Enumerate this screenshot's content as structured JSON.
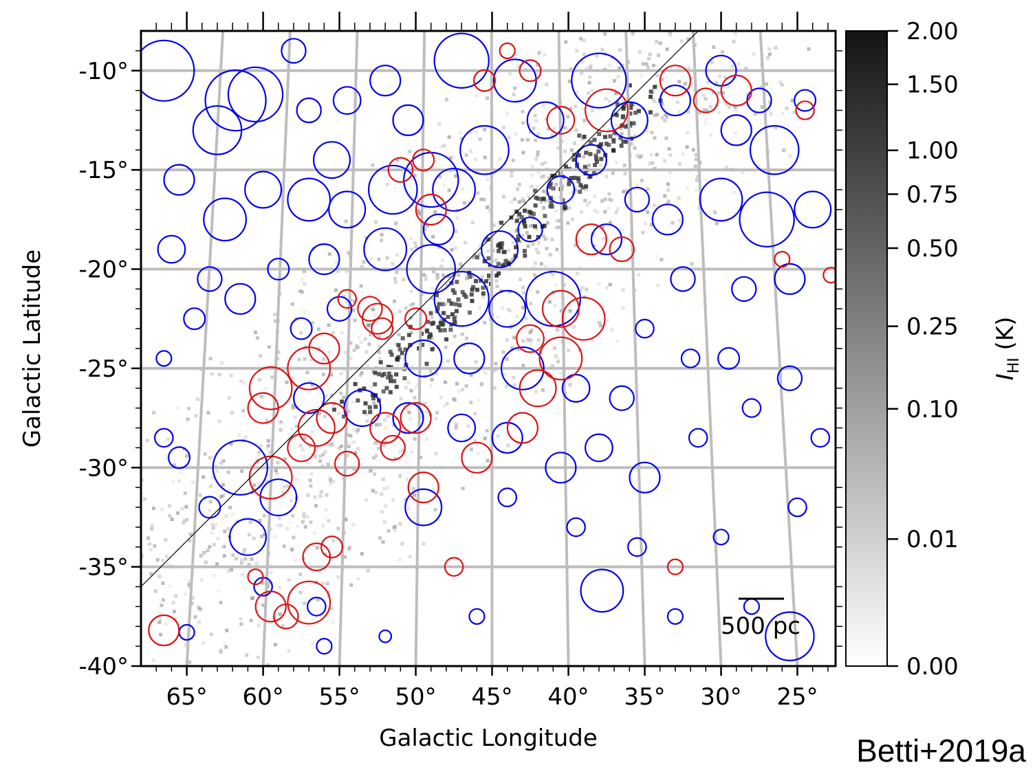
{
  "chart_data": {
    "type": "scatter",
    "xlabel": "Galactic Longitude",
    "ylabel": "Galactic Latitude",
    "xlim": [
      68,
      22.5
    ],
    "ylim": [
      -40,
      -8
    ],
    "x_ticks": [
      {
        "value": 65,
        "label": "65°"
      },
      {
        "value": 60,
        "label": "60°"
      },
      {
        "value": 55,
        "label": "55°"
      },
      {
        "value": 50,
        "label": "50°"
      },
      {
        "value": 45,
        "label": "45°"
      },
      {
        "value": 40,
        "label": "40°"
      },
      {
        "value": 35,
        "label": "35°"
      },
      {
        "value": 30,
        "label": "30°"
      },
      {
        "value": 25,
        "label": "25°"
      }
    ],
    "y_ticks": [
      {
        "value": -10,
        "label": "-10°"
      },
      {
        "value": -15,
        "label": "-15°"
      },
      {
        "value": -20,
        "label": "-20°"
      },
      {
        "value": -25,
        "label": "-25°"
      },
      {
        "value": -30,
        "label": "-30°"
      },
      {
        "value": -35,
        "label": "-35°"
      },
      {
        "value": -40,
        "label": "-40°"
      }
    ],
    "grid": true,
    "diagonal_line": {
      "from": [
        68,
        -36
      ],
      "to": [
        31.5,
        -8
      ]
    },
    "scale_bar_label": "500 pc",
    "colorbar": {
      "label_main": "I",
      "label_sub": "HI",
      "label_unit": " (K)",
      "range": [
        0,
        2
      ],
      "ticks": [
        {
          "value": 2.0,
          "label": "2.00"
        },
        {
          "value": 1.5,
          "label": "1.50"
        },
        {
          "value": 1.0,
          "label": "1.00"
        },
        {
          "value": 0.75,
          "label": "0.75"
        },
        {
          "value": 0.5,
          "label": "0.50"
        },
        {
          "value": 0.25,
          "label": "0.25"
        },
        {
          "value": 0.1,
          "label": "0.10"
        },
        {
          "value": 0.01,
          "label": "0.01"
        },
        {
          "value": 0.0,
          "label": "0.00"
        }
      ]
    },
    "series": [
      {
        "color": "#0000ee",
        "points": [
          [
            66.5,
            -10.0,
            2.0
          ],
          [
            61.8,
            -11.5,
            2.0
          ],
          [
            60.5,
            -11.2,
            1.8
          ],
          [
            63.0,
            -13.0,
            1.6
          ],
          [
            58.0,
            -9.0,
            0.8
          ],
          [
            55.5,
            -14.5,
            1.2
          ],
          [
            57.0,
            -16.5,
            1.4
          ],
          [
            60.0,
            -16.0,
            1.2
          ],
          [
            62.5,
            -17.5,
            1.4
          ],
          [
            65.5,
            -15.5,
            1.0
          ],
          [
            66.0,
            -19.0,
            0.9
          ],
          [
            63.5,
            -20.5,
            0.8
          ],
          [
            61.5,
            -21.5,
            1.0
          ],
          [
            59.0,
            -20.0,
            0.7
          ],
          [
            56.0,
            -19.5,
            1.0
          ],
          [
            54.5,
            -17.0,
            1.2
          ],
          [
            51.5,
            -16.0,
            1.6
          ],
          [
            49.0,
            -15.5,
            1.8
          ],
          [
            47.5,
            -16.0,
            1.4
          ],
          [
            45.5,
            -14.0,
            1.6
          ],
          [
            47.0,
            -9.5,
            1.8
          ],
          [
            43.5,
            -10.5,
            1.4
          ],
          [
            38.0,
            -10.5,
            1.8
          ],
          [
            36.0,
            -12.5,
            1.2
          ],
          [
            33.0,
            -11.5,
            1.0
          ],
          [
            30.0,
            -10.0,
            1.0
          ],
          [
            29.0,
            -13.0,
            1.0
          ],
          [
            26.5,
            -14.0,
            1.6
          ],
          [
            27.0,
            -17.5,
            1.8
          ],
          [
            24.0,
            -17.0,
            1.2
          ],
          [
            30.0,
            -16.5,
            1.4
          ],
          [
            33.5,
            -17.5,
            1.0
          ],
          [
            32.5,
            -20.5,
            0.8
          ],
          [
            28.5,
            -21.0,
            0.8
          ],
          [
            25.5,
            -20.5,
            1.0
          ],
          [
            41.0,
            -21.5,
            1.8
          ],
          [
            44.0,
            -22.0,
            1.2
          ],
          [
            47.0,
            -21.5,
            1.8
          ],
          [
            49.0,
            -20.0,
            1.6
          ],
          [
            52.0,
            -19.0,
            1.4
          ],
          [
            49.5,
            -24.5,
            1.2
          ],
          [
            46.5,
            -24.5,
            1.0
          ],
          [
            43.0,
            -25.0,
            1.4
          ],
          [
            39.5,
            -26.0,
            0.9
          ],
          [
            36.5,
            -26.5,
            0.8
          ],
          [
            38.0,
            -29.0,
            0.9
          ],
          [
            35.0,
            -30.5,
            1.0
          ],
          [
            40.5,
            -30.0,
            1.0
          ],
          [
            44.0,
            -28.5,
            1.0
          ],
          [
            47.0,
            -28.0,
            0.9
          ],
          [
            50.5,
            -27.5,
            1.0
          ],
          [
            53.5,
            -27.0,
            1.2
          ],
          [
            57.0,
            -26.5,
            1.0
          ],
          [
            61.5,
            -30.0,
            1.8
          ],
          [
            59.0,
            -31.5,
            1.2
          ],
          [
            61.0,
            -33.5,
            1.2
          ],
          [
            63.5,
            -32.0,
            0.7
          ],
          [
            65.5,
            -29.5,
            0.7
          ],
          [
            66.5,
            -28.5,
            0.6
          ],
          [
            60.0,
            -36.0,
            0.6
          ],
          [
            49.5,
            -32.0,
            1.2
          ],
          [
            44.0,
            -31.5,
            0.6
          ],
          [
            39.5,
            -33.0,
            0.6
          ],
          [
            35.5,
            -34.0,
            0.6
          ],
          [
            30.0,
            -33.5,
            0.5
          ],
          [
            25.0,
            -32.0,
            0.6
          ],
          [
            23.5,
            -28.5,
            0.6
          ],
          [
            25.5,
            -25.5,
            0.8
          ],
          [
            28.0,
            -27.0,
            0.6
          ],
          [
            31.5,
            -28.5,
            0.6
          ],
          [
            37.8,
            -36.2,
            1.4
          ],
          [
            25.5,
            -38.5,
            1.6
          ],
          [
            28.0,
            -37.0,
            0.5
          ],
          [
            33.0,
            -37.5,
            0.5
          ],
          [
            46.0,
            -37.5,
            0.5
          ],
          [
            52.0,
            -38.5,
            0.4
          ],
          [
            56.0,
            -39.0,
            0.5
          ],
          [
            65.0,
            -38.3,
            0.5
          ],
          [
            56.5,
            -37.0,
            0.6
          ],
          [
            35.0,
            -23.0,
            0.6
          ],
          [
            41.5,
            -12.5,
            1.2
          ],
          [
            38.5,
            -14.5,
            1.0
          ],
          [
            40.5,
            -16.0,
            0.9
          ],
          [
            42.5,
            -18.0,
            0.8
          ],
          [
            37.5,
            -18.5,
            1.0
          ],
          [
            44.5,
            -19.0,
            1.2
          ],
          [
            48.5,
            -18.0,
            1.0
          ],
          [
            55.0,
            -22.0,
            0.8
          ],
          [
            57.5,
            -23.0,
            0.7
          ],
          [
            64.5,
            -22.5,
            0.7
          ],
          [
            66.5,
            -24.5,
            0.5
          ],
          [
            52.0,
            -10.5,
            1.0
          ],
          [
            54.5,
            -11.5,
            0.9
          ],
          [
            50.5,
            -12.5,
            1.0
          ],
          [
            57.0,
            -12.0,
            0.8
          ],
          [
            35.5,
            -16.5,
            0.8
          ],
          [
            27.5,
            -11.5,
            0.8
          ],
          [
            24.5,
            -11.5,
            0.7
          ],
          [
            29.5,
            -24.5,
            0.7
          ],
          [
            32.0,
            -24.5,
            0.6
          ]
        ]
      },
      {
        "color": "#dd1111",
        "points": [
          [
            52.5,
            -22.5,
            1.0
          ],
          [
            53.0,
            -22.0,
            0.8
          ],
          [
            52.2,
            -23.0,
            0.7
          ],
          [
            50.0,
            -22.5,
            0.7
          ],
          [
            57.0,
            -25.0,
            1.4
          ],
          [
            56.0,
            -24.0,
            1.0
          ],
          [
            59.5,
            -26.0,
            1.4
          ],
          [
            60.0,
            -27.0,
            1.0
          ],
          [
            55.5,
            -27.5,
            1.0
          ],
          [
            56.5,
            -28.0,
            1.2
          ],
          [
            54.5,
            -29.8,
            0.8
          ],
          [
            52.0,
            -28.0,
            1.0
          ],
          [
            50.0,
            -27.5,
            1.0
          ],
          [
            51.5,
            -29.0,
            0.8
          ],
          [
            57.5,
            -29.0,
            0.9
          ],
          [
            59.5,
            -30.5,
            1.4
          ],
          [
            49.5,
            -31.0,
            1.0
          ],
          [
            46.0,
            -29.5,
            1.0
          ],
          [
            43.0,
            -28.0,
            1.0
          ],
          [
            42.0,
            -26.0,
            1.2
          ],
          [
            40.5,
            -24.5,
            1.4
          ],
          [
            39.0,
            -22.5,
            1.4
          ],
          [
            40.5,
            -22.0,
            1.2
          ],
          [
            42.5,
            -23.5,
            0.9
          ],
          [
            37.5,
            -12.0,
            1.4
          ],
          [
            40.5,
            -12.5,
            0.9
          ],
          [
            33.0,
            -10.5,
            1.0
          ],
          [
            29.0,
            -11.0,
            1.0
          ],
          [
            42.5,
            -10.0,
            0.7
          ],
          [
            45.5,
            -10.5,
            0.7
          ],
          [
            49.0,
            -17.0,
            1.0
          ],
          [
            51.0,
            -15.0,
            0.8
          ],
          [
            49.5,
            -14.5,
            0.7
          ],
          [
            38.5,
            -18.5,
            1.0
          ],
          [
            36.5,
            -19.0,
            0.8
          ],
          [
            66.5,
            -38.2,
            1.0
          ],
          [
            57.0,
            -36.8,
            1.4
          ],
          [
            59.5,
            -37.0,
            1.0
          ],
          [
            58.5,
            -37.5,
            0.8
          ],
          [
            56.5,
            -34.5,
            0.9
          ],
          [
            55.5,
            -34.0,
            0.7
          ],
          [
            47.5,
            -35.0,
            0.6
          ],
          [
            33.0,
            -35.0,
            0.5
          ],
          [
            54.5,
            -21.5,
            0.6
          ],
          [
            24.5,
            -12.0,
            0.6
          ],
          [
            31.0,
            -11.5,
            0.8
          ],
          [
            44.0,
            -9.0,
            0.5
          ],
          [
            60.5,
            -35.5,
            0.5
          ],
          [
            26.0,
            -19.5,
            0.5
          ],
          [
            22.8,
            -20.3,
            0.5
          ]
        ]
      }
    ]
  },
  "credit": "Betti+2019a"
}
